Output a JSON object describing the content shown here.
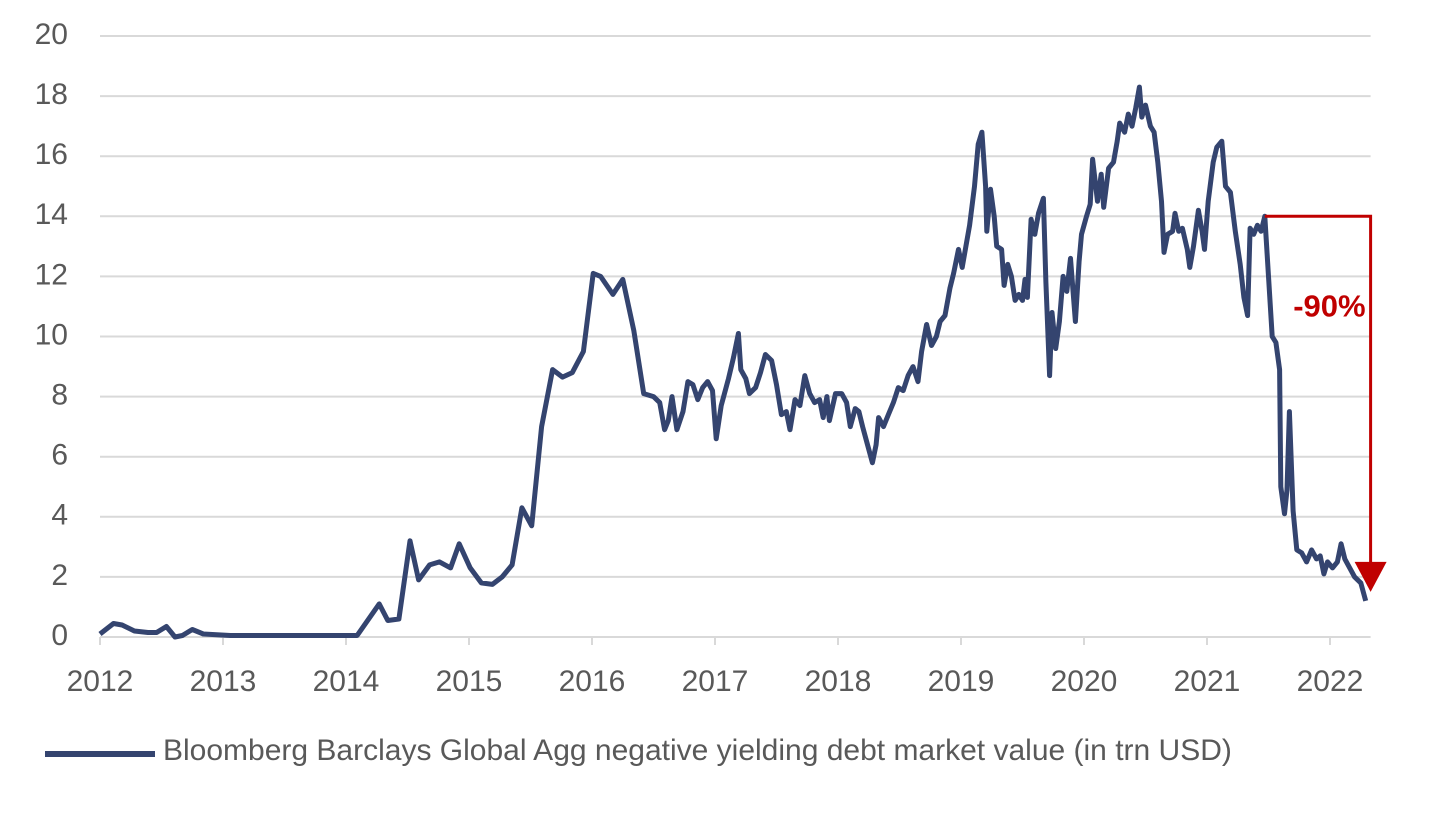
{
  "chart_data": {
    "type": "line",
    "x": [
      2012.0,
      2012.11,
      2012.18,
      2012.28,
      2012.39,
      2012.46,
      2012.54,
      2012.61,
      2012.67,
      2012.75,
      2012.84,
      2013.06,
      2013.3,
      2013.63,
      2013.95,
      2014.09,
      2014.27,
      2014.34,
      2014.43,
      2014.52,
      2014.59,
      2014.68,
      2014.76,
      2014.85,
      2014.92,
      2015.01,
      2015.1,
      2015.19,
      2015.27,
      2015.35,
      2015.43,
      2015.51,
      2015.59,
      2015.68,
      2015.76,
      2015.84,
      2015.93,
      2016.01,
      2016.07,
      2016.17,
      2016.25,
      2016.34,
      2016.42,
      2016.5,
      2016.55,
      2016.59,
      2016.62,
      2016.65,
      2016.69,
      2016.74,
      2016.78,
      2016.82,
      2016.86,
      2016.9,
      2016.94,
      2016.98,
      2017.01,
      2017.05,
      2017.11,
      2017.15,
      2017.19,
      2017.21,
      2017.25,
      2017.28,
      2017.33,
      2017.37,
      2017.41,
      2017.46,
      2017.5,
      2017.54,
      2017.58,
      2017.61,
      2017.65,
      2017.69,
      2017.73,
      2017.77,
      2017.81,
      2017.85,
      2017.88,
      2017.91,
      2017.93,
      2017.98,
      2018.03,
      2018.07,
      2018.1,
      2018.14,
      2018.17,
      2018.2,
      2018.24,
      2018.28,
      2018.31,
      2018.33,
      2018.37,
      2018.41,
      2018.45,
      2018.49,
      2018.53,
      2018.57,
      2018.61,
      2018.65,
      2018.68,
      2018.72,
      2018.76,
      2018.8,
      2018.83,
      2018.87,
      2018.91,
      2018.94,
      2018.98,
      2019.01,
      2019.04,
      2019.07,
      2019.11,
      2019.14,
      2019.17,
      2019.2,
      2019.21,
      2019.24,
      2019.27,
      2019.29,
      2019.33,
      2019.35,
      2019.38,
      2019.41,
      2019.44,
      2019.47,
      2019.5,
      2019.52,
      2019.54,
      2019.57,
      2019.6,
      2019.63,
      2019.67,
      2019.69,
      2019.72,
      2019.74,
      2019.77,
      2019.8,
      2019.83,
      2019.86,
      2019.89,
      2019.93,
      2019.96,
      2019.98,
      2020.02,
      2020.05,
      2020.07,
      2020.11,
      2020.14,
      2020.16,
      2020.2,
      2020.24,
      2020.27,
      2020.29,
      2020.33,
      2020.36,
      2020.39,
      2020.42,
      2020.45,
      2020.47,
      2020.5,
      2020.54,
      2020.57,
      2020.6,
      2020.63,
      2020.65,
      2020.68,
      2020.72,
      2020.74,
      2020.77,
      2020.8,
      2020.84,
      2020.86,
      2020.89,
      2020.93,
      2020.96,
      2020.98,
      2021.01,
      2021.05,
      2021.08,
      2021.12,
      2021.15,
      2021.19,
      2021.23,
      2021.27,
      2021.3,
      2021.33,
      2021.35,
      2021.38,
      2021.41,
      2021.44,
      2021.47,
      2021.5,
      2021.53,
      2021.56,
      2021.59,
      2021.6,
      2021.63,
      2021.65,
      2021.67,
      2021.7,
      2021.73,
      2021.77,
      2021.81,
      2021.85,
      2021.89,
      2021.92,
      2021.95,
      2021.98,
      2022.02,
      2022.06,
      2022.09,
      2022.12,
      2022.16,
      2022.2,
      2022.25,
      2022.29
    ],
    "series": [
      {
        "name": "Bloomberg Barclays Global Agg negative yielding debt market value (in trn USD)",
        "color": "#34446f",
        "values": [
          0.1,
          0.45,
          0.4,
          0.2,
          0.15,
          0.15,
          0.35,
          0,
          0.05,
          0.25,
          0.1,
          0.05,
          0.05,
          0.05,
          0.05,
          0.05,
          1.1,
          0.55,
          0.6,
          3.2,
          1.9,
          2.4,
          2.5,
          2.3,
          3.1,
          2.3,
          1.8,
          1.75,
          2.0,
          2.4,
          4.3,
          3.7,
          7.0,
          8.9,
          8.65,
          8.8,
          9.5,
          12.1,
          12.0,
          11.4,
          11.9,
          10.2,
          8.1,
          8.0,
          7.8,
          6.9,
          7.2,
          8.0,
          6.9,
          7.5,
          8.5,
          8.4,
          7.9,
          8.3,
          8.5,
          8.2,
          6.6,
          7.7,
          8.6,
          9.3,
          10.1,
          8.9,
          8.6,
          8.1,
          8.3,
          8.8,
          9.4,
          9.2,
          8.4,
          7.4,
          7.5,
          6.9,
          7.9,
          7.7,
          8.7,
          8.1,
          7.8,
          7.9,
          7.3,
          8.0,
          7.2,
          8.1,
          8.1,
          7.8,
          7.0,
          7.6,
          7.5,
          7.0,
          6.4,
          5.8,
          6.4,
          7.3,
          7.0,
          7.4,
          7.8,
          8.3,
          8.2,
          8.7,
          9.0,
          8.5,
          9.5,
          10.4,
          9.7,
          10.0,
          10.5,
          10.7,
          11.6,
          12.1,
          12.9,
          12.3,
          13.0,
          13.7,
          15.0,
          16.4,
          16.8,
          15.0,
          13.5,
          14.9,
          14.0,
          13.0,
          12.9,
          11.7,
          12.4,
          12.0,
          11.2,
          11.4,
          11.2,
          11.9,
          11.3,
          13.9,
          13.4,
          14.1,
          14.6,
          11.8,
          8.7,
          10.8,
          9.6,
          10.5,
          12.0,
          11.5,
          12.6,
          10.5,
          12.5,
          13.4,
          14.0,
          14.4,
          15.9,
          14.5,
          15.4,
          14.3,
          15.6,
          15.8,
          16.5,
          17.1,
          16.8,
          17.4,
          17.0,
          17.6,
          18.3,
          17.3,
          17.7,
          17.0,
          16.8,
          15.8,
          14.5,
          12.8,
          13.4,
          13.5,
          14.1,
          13.5,
          13.6,
          12.9,
          12.3,
          13.0,
          14.2,
          13.5,
          12.9,
          14.5,
          15.8,
          16.3,
          16.5,
          15.0,
          14.8,
          13.5,
          12.4,
          11.3,
          10.7,
          13.6,
          13.4,
          13.7,
          13.5,
          14.0,
          12.0,
          10.0,
          9.8,
          8.9,
          5.0,
          4.1,
          4.9,
          7.5,
          4.2,
          2.9,
          2.8,
          2.5,
          2.9,
          2.6,
          2.7,
          2.1,
          2.5,
          2.3,
          2.5,
          3.1,
          2.6,
          2.3,
          2.0,
          1.8,
          1.2
        ]
      }
    ],
    "xlim": [
      2012,
      2022.33
    ],
    "xticks": [
      2012,
      2013,
      2014,
      2015,
      2016,
      2017,
      2018,
      2019,
      2020,
      2021,
      2022
    ],
    "ylim": [
      0,
      20
    ],
    "yticks": [
      0,
      2,
      4,
      6,
      8,
      10,
      12,
      14,
      16,
      18,
      20
    ],
    "grid": true,
    "annotations": [
      {
        "text": "-90%",
        "x": [
          2021.47,
          2022.33
        ],
        "y": [
          14,
          1.5
        ],
        "color": "#c00000"
      }
    ]
  }
}
